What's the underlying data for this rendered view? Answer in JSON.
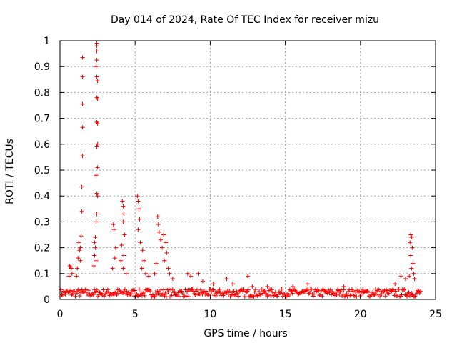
{
  "chart_data": {
    "type": "scatter",
    "title": "Day 014 of 2024, Rate Of TEC Index for receiver mizu",
    "xlabel": "GPS time / hours",
    "ylabel": "ROTI / TECUs",
    "xlim": [
      0,
      25
    ],
    "ylim": [
      0,
      1
    ],
    "grid": true,
    "marker": "+",
    "series_color": "#ff0000",
    "x_ticks": [
      "0",
      "5",
      "10",
      "15",
      "20",
      "25"
    ],
    "y_ticks": [
      "0",
      "0.1",
      "0.2",
      "0.3",
      "0.4",
      "0.5",
      "0.6",
      "0.7",
      "0.8",
      "0.9",
      "1"
    ],
    "series": [
      {
        "name": "ROTI",
        "points": [
          [
            1.5,
            0.935
          ],
          [
            1.5,
            0.86
          ],
          [
            1.5,
            0.755
          ],
          [
            1.5,
            0.665
          ],
          [
            1.5,
            0.555
          ],
          [
            1.45,
            0.435
          ],
          [
            1.45,
            0.34
          ],
          [
            1.4,
            0.245
          ],
          [
            1.35,
            0.2
          ],
          [
            1.35,
            0.15
          ],
          [
            2.45,
            0.99
          ],
          [
            2.45,
            0.98
          ],
          [
            2.45,
            0.96
          ],
          [
            2.45,
            0.925
          ],
          [
            2.4,
            0.9
          ],
          [
            2.45,
            0.86
          ],
          [
            2.5,
            0.845
          ],
          [
            2.45,
            0.78
          ],
          [
            2.5,
            0.775
          ],
          [
            2.45,
            0.685
          ],
          [
            2.5,
            0.68
          ],
          [
            2.5,
            0.6
          ],
          [
            2.45,
            0.59
          ],
          [
            2.5,
            0.51
          ],
          [
            2.4,
            0.48
          ],
          [
            2.45,
            0.41
          ],
          [
            2.5,
            0.4
          ],
          [
            2.45,
            0.33
          ],
          [
            2.4,
            0.3
          ],
          [
            2.35,
            0.24
          ],
          [
            2.3,
            0.22
          ],
          [
            2.35,
            0.2
          ],
          [
            2.3,
            0.17
          ],
          [
            2.4,
            0.15
          ],
          [
            2.25,
            0.13
          ],
          [
            0.65,
            0.13
          ],
          [
            0.7,
            0.125
          ],
          [
            0.75,
            0.12
          ],
          [
            0.8,
            0.1
          ],
          [
            0.6,
            0.09
          ],
          [
            1.25,
            0.22
          ],
          [
            1.3,
            0.19
          ],
          [
            1.2,
            0.16
          ],
          [
            1.15,
            0.12
          ],
          [
            1.1,
            0.09
          ],
          [
            3.55,
            0.29
          ],
          [
            3.6,
            0.27
          ],
          [
            3.7,
            0.2
          ],
          [
            3.65,
            0.16
          ],
          [
            3.5,
            0.12
          ],
          [
            4.15,
            0.38
          ],
          [
            4.2,
            0.36
          ],
          [
            4.25,
            0.33
          ],
          [
            4.2,
            0.3
          ],
          [
            4.3,
            0.25
          ],
          [
            4.1,
            0.21
          ],
          [
            4.25,
            0.17
          ],
          [
            4.05,
            0.15
          ],
          [
            4.2,
            0.12
          ],
          [
            4.4,
            0.1
          ],
          [
            5.15,
            0.4
          ],
          [
            5.2,
            0.38
          ],
          [
            5.25,
            0.35
          ],
          [
            5.3,
            0.31
          ],
          [
            5.2,
            0.27
          ],
          [
            5.35,
            0.22
          ],
          [
            5.5,
            0.19
          ],
          [
            5.6,
            0.15
          ],
          [
            5.45,
            0.12
          ],
          [
            5.7,
            0.1
          ],
          [
            6.5,
            0.32
          ],
          [
            6.55,
            0.29
          ],
          [
            6.6,
            0.26
          ],
          [
            6.7,
            0.23
          ],
          [
            6.9,
            0.25
          ],
          [
            7.05,
            0.22
          ],
          [
            6.8,
            0.2
          ],
          [
            7.1,
            0.18
          ],
          [
            6.95,
            0.15
          ],
          [
            7.2,
            0.12
          ],
          [
            7.3,
            0.1
          ],
          [
            6.4,
            0.14
          ],
          [
            6.3,
            0.1
          ],
          [
            5.9,
            0.09
          ],
          [
            7.5,
            0.08
          ],
          [
            8.5,
            0.1
          ],
          [
            8.7,
            0.09
          ],
          [
            9.2,
            0.1
          ],
          [
            9.5,
            0.07
          ],
          [
            10.2,
            0.06
          ],
          [
            11.1,
            0.08
          ],
          [
            11.5,
            0.06
          ],
          [
            12.5,
            0.09
          ],
          [
            12.8,
            0.05
          ],
          [
            13.8,
            0.05
          ],
          [
            15.5,
            0.05
          ],
          [
            16.5,
            0.06
          ],
          [
            17.5,
            0.04
          ],
          [
            18.9,
            0.05
          ],
          [
            19.7,
            0.035
          ],
          [
            21.0,
            0.04
          ],
          [
            22.3,
            0.06
          ],
          [
            22.7,
            0.09
          ],
          [
            23.0,
            0.08
          ],
          [
            23.35,
            0.25
          ],
          [
            23.4,
            0.24
          ],
          [
            23.3,
            0.22
          ],
          [
            23.45,
            0.2
          ],
          [
            23.35,
            0.17
          ],
          [
            23.5,
            0.14
          ],
          [
            23.4,
            0.12
          ],
          [
            23.55,
            0.1
          ],
          [
            23.6,
            0.08
          ],
          [
            23.25,
            0.09
          ]
        ],
        "baseline": [
          0.01,
          0.04
        ]
      }
    ]
  }
}
